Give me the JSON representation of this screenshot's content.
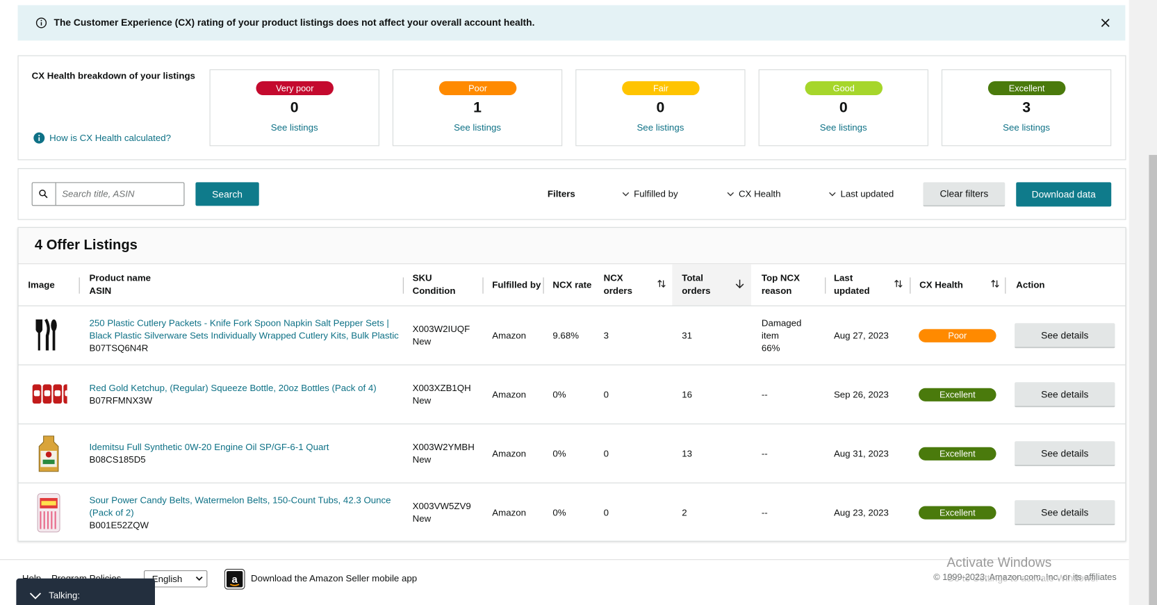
{
  "banner": {
    "text": "The Customer Experience (CX) rating of your product listings does not affect your overall account health."
  },
  "breakdown": {
    "title": "CX Health breakdown of your listings",
    "help_link": "How is CX Health calculated?",
    "cards": [
      {
        "label": "Very poor",
        "count": 0,
        "link": "See listings",
        "color": "#c40a2e",
        "text_color": "#ffffff"
      },
      {
        "label": "Poor",
        "count": 1,
        "link": "See listings",
        "color": "#ff8a00",
        "text_color": "#ffffff"
      },
      {
        "label": "Fair",
        "count": 0,
        "link": "See listings",
        "color": "#ffc400",
        "text_color": "#ffffff"
      },
      {
        "label": "Good",
        "count": 0,
        "link": "See listings",
        "color": "#a6d62b",
        "text_color": "#ffffff"
      },
      {
        "label": "Excellent",
        "count": 3,
        "link": "See listings",
        "color": "#4a7a0c",
        "text_color": "#ffffff"
      }
    ]
  },
  "toolbar": {
    "search_placeholder": "Search title, ASIN",
    "search_button": "Search",
    "filters_label": "Filters",
    "filters": [
      "Fulfilled by",
      "CX Health",
      "Last updated"
    ],
    "clear_button": "Clear filters",
    "download_button": "Download data"
  },
  "listings": {
    "title": "4 Offer Listings",
    "columns": [
      [
        "Image"
      ],
      [
        "Product name",
        "ASIN"
      ],
      [
        "SKU",
        "Condition"
      ],
      [
        "Fulfilled by"
      ],
      [
        "NCX rate"
      ],
      [
        "NCX",
        "orders"
      ],
      [
        "Total",
        "orders"
      ],
      [
        "Top NCX",
        "reason"
      ],
      [
        "Last",
        "updated"
      ],
      [
        "CX Health"
      ],
      [
        "Action"
      ]
    ],
    "rows": [
      {
        "product_name": "250 Plastic Cutlery Packets - Knife Fork Spoon Napkin Salt Pepper Sets | Black Plastic Silverware Sets Individually Wrapped Cutlery Kits, Bulk Plastic",
        "asin": "B07TSQ6N4R",
        "sku": "X003W2IUQF",
        "condition": "New",
        "fulfilled_by": "Amazon",
        "ncx_rate": "9.68%",
        "ncx_orders": 3,
        "total_orders": 31,
        "top_ncx_reason": [
          "Damaged",
          "item",
          "66%"
        ],
        "last_updated": "Aug 27, 2023",
        "cx_health": "Poor",
        "action": "See details"
      },
      {
        "product_name": "Red Gold Ketchup, (Regular) Squeeze Bottle, 20oz Bottles (Pack of 4)",
        "asin": "B07RFMNX3W",
        "sku": "X003XZB1QH",
        "condition": "New",
        "fulfilled_by": "Amazon",
        "ncx_rate": "0%",
        "ncx_orders": 0,
        "total_orders": 16,
        "top_ncx_reason": [
          "--"
        ],
        "last_updated": "Sep 26, 2023",
        "cx_health": "Excellent",
        "action": "See details"
      },
      {
        "product_name": "Idemitsu Full Synthetic 0W-20 Engine Oil SP/GF-6-1 Quart",
        "asin": "B08CS185D5",
        "sku": "X003W2YMBH",
        "condition": "New",
        "fulfilled_by": "Amazon",
        "ncx_rate": "0%",
        "ncx_orders": 0,
        "total_orders": 13,
        "top_ncx_reason": [
          "--"
        ],
        "last_updated": "Aug 31, 2023",
        "cx_health": "Excellent",
        "action": "See details"
      },
      {
        "product_name": "Sour Power Candy Belts, Watermelon Belts, 150-Count Tubs, 42.3 Ounce (Pack of 2)",
        "asin": "B001E52ZQW",
        "sku": "X003VW5ZV9",
        "condition": "New",
        "fulfilled_by": "Amazon",
        "ncx_rate": "0%",
        "ncx_orders": 0,
        "total_orders": 2,
        "top_ncx_reason": [
          "--"
        ],
        "last_updated": "Aug 23, 2023",
        "cx_health": "Excellent",
        "action": "See details"
      }
    ]
  },
  "footer": {
    "links": [
      "Help",
      "Program Policies"
    ],
    "language": "English",
    "app_text": "Download the Amazon Seller mobile app",
    "copyright": "© 1999-2023, Amazon.com, Inc. or its affiliates"
  },
  "overlay": {
    "title": "Activate Windows",
    "subtitle": "Go to Settings to activate Windows."
  },
  "talking_widget": {
    "label": "Talking:"
  }
}
